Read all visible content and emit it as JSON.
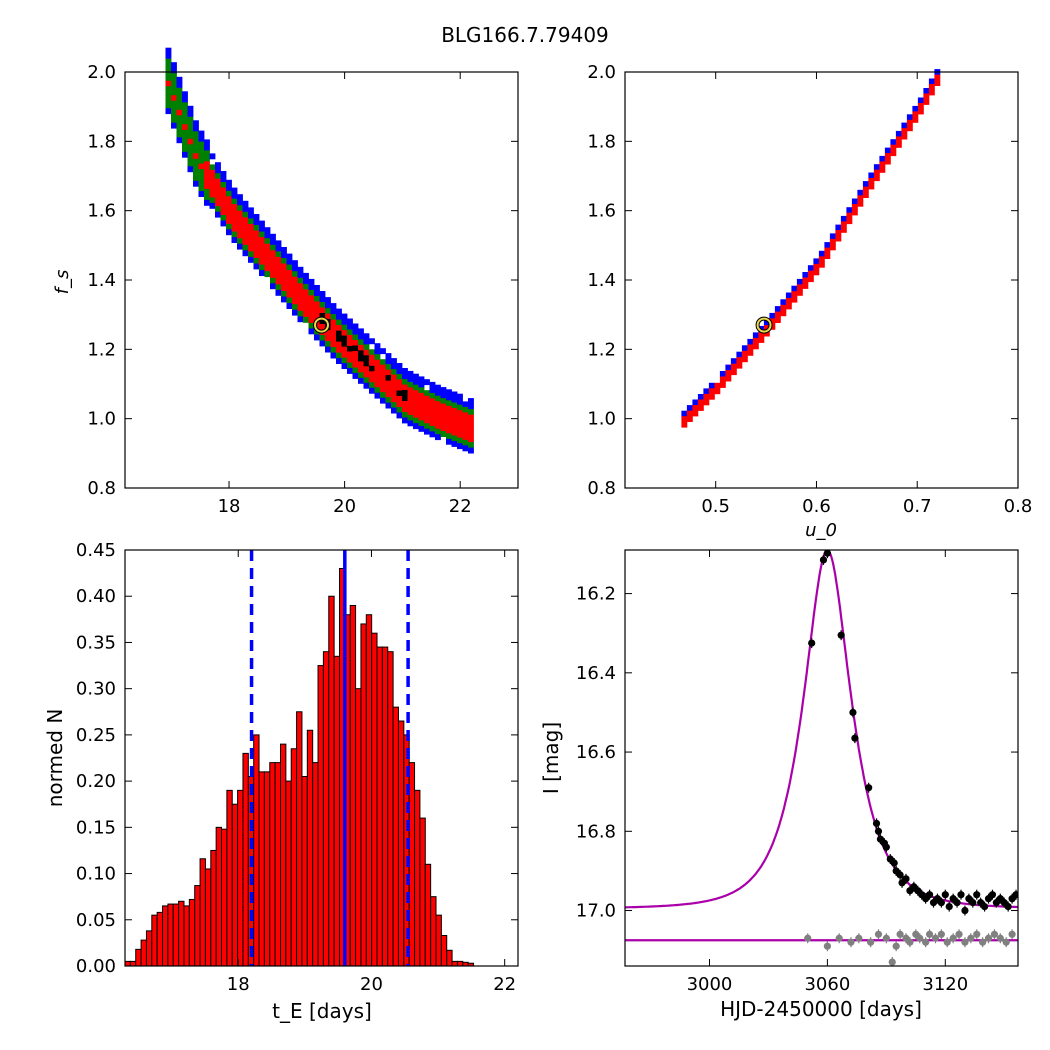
{
  "figure_title": "BLG166.7.79409",
  "chart_data": [
    {
      "type": "heatmap",
      "panel": "top-left",
      "title": "",
      "xlabel": "",
      "ylabel": "f_s",
      "xlim": [
        16.2,
        23.0
      ],
      "ylim": [
        0.8,
        2.0
      ],
      "xticks": [
        "18",
        "20",
        "22"
      ],
      "yticks": [
        "0.8",
        "1.0",
        "1.2",
        "1.4",
        "1.6",
        "1.8",
        "2.0"
      ],
      "best_fit": {
        "x": 19.6,
        "y": 1.27
      },
      "ridge": [
        [
          16.9,
          1.98
        ],
        [
          17.4,
          1.76
        ],
        [
          18.0,
          1.6
        ],
        [
          18.6,
          1.48
        ],
        [
          19.2,
          1.36
        ],
        [
          19.8,
          1.25
        ],
        [
          20.4,
          1.16
        ],
        [
          21.0,
          1.07
        ],
        [
          21.6,
          1.02
        ],
        [
          22.2,
          0.98
        ]
      ],
      "confidence_colors": {
        "outer": "#0000ff",
        "middle": "#008000",
        "inner": "#ff0000",
        "peak": "#000000"
      }
    },
    {
      "type": "heatmap",
      "panel": "top-right",
      "title": "",
      "xlabel": "u_0",
      "ylabel": "",
      "xlim": [
        0.41,
        0.8
      ],
      "ylim": [
        0.8,
        2.0
      ],
      "xticks": [
        "0.5",
        "0.6",
        "0.7",
        "0.8"
      ],
      "yticks": [
        "0.8",
        "1.0",
        "1.2",
        "1.4",
        "1.6",
        "1.8",
        "2.0"
      ],
      "best_fit": {
        "x": 0.548,
        "y": 1.27
      },
      "ridge": [
        [
          0.466,
          1.0
        ],
        [
          0.5,
          1.1
        ],
        [
          0.55,
          1.27
        ],
        [
          0.6,
          1.45
        ],
        [
          0.65,
          1.68
        ],
        [
          0.7,
          1.9
        ],
        [
          0.72,
          2.0
        ]
      ],
      "confidence_colors": {
        "outer": "#0000ff",
        "middle": "#008000",
        "inner": "#ff0000",
        "peak": "#000000"
      }
    },
    {
      "type": "bar",
      "panel": "bottom-left",
      "title": "",
      "xlabel": "t_E [days]",
      "ylabel": "normed N",
      "xlim": [
        16.3,
        22.2
      ],
      "ylim": [
        0.0,
        0.45
      ],
      "xticks": [
        "18",
        "20",
        "22"
      ],
      "yticks": [
        "0.00",
        "0.05",
        "0.10",
        "0.15",
        "0.20",
        "0.25",
        "0.30",
        "0.35",
        "0.40",
        "0.45"
      ],
      "bin_start": 16.3,
      "bin_width": 0.0805,
      "values": [
        0.005,
        0.005,
        0.018,
        0.028,
        0.038,
        0.055,
        0.058,
        0.065,
        0.067,
        0.067,
        0.07,
        0.065,
        0.072,
        0.087,
        0.116,
        0.105,
        0.125,
        0.15,
        0.148,
        0.19,
        0.175,
        0.19,
        0.23,
        0.205,
        0.25,
        0.21,
        0.21,
        0.22,
        0.22,
        0.24,
        0.2,
        0.235,
        0.275,
        0.205,
        0.255,
        0.22,
        0.325,
        0.34,
        0.4,
        0.335,
        0.43,
        0.38,
        0.39,
        0.3,
        0.37,
        0.38,
        0.36,
        0.345,
        0.345,
        0.34,
        0.28,
        0.265,
        0.25,
        0.22,
        0.19,
        0.16,
        0.11,
        0.075,
        0.055,
        0.033,
        0.017,
        0.005,
        0.005,
        0.004,
        0.003
      ],
      "best_fit_line": 19.6,
      "confidence_lines": [
        18.2,
        20.55
      ],
      "bar_color": "#ff0000"
    },
    {
      "type": "scatter",
      "panel": "bottom-right",
      "title": "",
      "xlabel": "HJD-2450000 [days]",
      "ylabel": "I [mag]",
      "xlim": [
        2957,
        3157
      ],
      "ylim": [
        17.14,
        16.09
      ],
      "xticks": [
        "3000",
        "3060",
        "3120"
      ],
      "yticks": [
        "16.2",
        "16.4",
        "16.6",
        "16.8",
        "17.0"
      ],
      "model": {
        "t0": 3060,
        "tE": 19.6,
        "u0": 0.548,
        "baseline": 16.995,
        "fs": 1.27,
        "color": "#aa00aa"
      },
      "series": [
        {
          "color": "#000000",
          "x": [
            3052,
            3058,
            3060,
            3067,
            3073,
            3074,
            3081,
            3085,
            3086,
            3087,
            3089,
            3090,
            3092,
            3094,
            3095,
            3097,
            3098,
            3100,
            3102,
            3104,
            3106,
            3108,
            3110,
            3112,
            3114,
            3116,
            3118,
            3120,
            3122,
            3124,
            3126,
            3128,
            3130,
            3132,
            3134,
            3136,
            3138,
            3140,
            3142,
            3144,
            3146,
            3148,
            3150,
            3152,
            3154,
            3156
          ],
          "y": [
            16.325,
            16.115,
            16.098,
            16.305,
            16.5,
            16.565,
            16.69,
            16.78,
            16.8,
            16.82,
            16.83,
            16.84,
            16.87,
            16.88,
            16.9,
            16.91,
            16.93,
            16.92,
            16.95,
            16.94,
            16.95,
            16.96,
            16.97,
            16.96,
            16.98,
            16.97,
            16.98,
            16.96,
            16.99,
            16.97,
            16.98,
            16.96,
            17.0,
            16.97,
            16.98,
            16.96,
            16.98,
            16.99,
            16.97,
            16.96,
            16.98,
            16.97,
            16.98,
            16.99,
            16.97,
            16.96
          ]
        },
        {
          "color": "#808080",
          "x": [
            3050,
            3060,
            3066,
            3072,
            3076,
            3082,
            3086,
            3090,
            3093,
            3095,
            3097,
            3100,
            3102,
            3105,
            3107,
            3110,
            3112,
            3115,
            3118,
            3121,
            3124,
            3127,
            3130,
            3133,
            3136,
            3139,
            3142,
            3145,
            3148,
            3151,
            3154
          ],
          "y": [
            17.07,
            17.09,
            17.07,
            17.08,
            17.07,
            17.08,
            17.06,
            17.07,
            17.13,
            17.09,
            17.06,
            17.07,
            17.08,
            17.06,
            17.07,
            17.08,
            17.06,
            17.07,
            17.06,
            17.08,
            17.07,
            17.06,
            17.08,
            17.07,
            17.06,
            17.08,
            17.07,
            17.06,
            17.07,
            17.08,
            17.06
          ]
        }
      ]
    }
  ]
}
